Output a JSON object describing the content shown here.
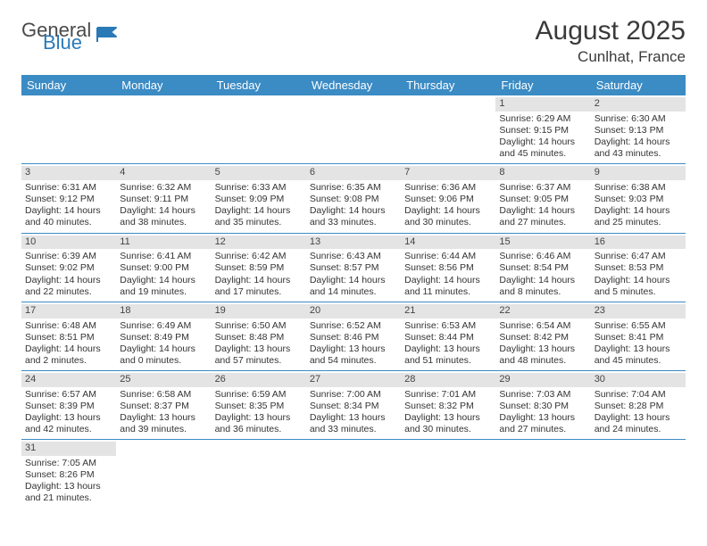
{
  "logo": {
    "part1": "General",
    "part2": "Blue"
  },
  "title": "August 2025",
  "location": "Cunlhat, France",
  "colors": {
    "header_bg": "#3b8bc4",
    "header_text": "#ffffff",
    "daynum_bg": "#e4e4e4",
    "row_border": "#3b8bc4",
    "logo_gray": "#4a4a4a",
    "logo_blue": "#2a7ab8"
  },
  "day_headers": [
    "Sunday",
    "Monday",
    "Tuesday",
    "Wednesday",
    "Thursday",
    "Friday",
    "Saturday"
  ],
  "weeks": [
    [
      null,
      null,
      null,
      null,
      null,
      {
        "n": "1",
        "sr": "Sunrise: 6:29 AM",
        "ss": "Sunset: 9:15 PM",
        "d1": "Daylight: 14 hours",
        "d2": "and 45 minutes."
      },
      {
        "n": "2",
        "sr": "Sunrise: 6:30 AM",
        "ss": "Sunset: 9:13 PM",
        "d1": "Daylight: 14 hours",
        "d2": "and 43 minutes."
      }
    ],
    [
      {
        "n": "3",
        "sr": "Sunrise: 6:31 AM",
        "ss": "Sunset: 9:12 PM",
        "d1": "Daylight: 14 hours",
        "d2": "and 40 minutes."
      },
      {
        "n": "4",
        "sr": "Sunrise: 6:32 AM",
        "ss": "Sunset: 9:11 PM",
        "d1": "Daylight: 14 hours",
        "d2": "and 38 minutes."
      },
      {
        "n": "5",
        "sr": "Sunrise: 6:33 AM",
        "ss": "Sunset: 9:09 PM",
        "d1": "Daylight: 14 hours",
        "d2": "and 35 minutes."
      },
      {
        "n": "6",
        "sr": "Sunrise: 6:35 AM",
        "ss": "Sunset: 9:08 PM",
        "d1": "Daylight: 14 hours",
        "d2": "and 33 minutes."
      },
      {
        "n": "7",
        "sr": "Sunrise: 6:36 AM",
        "ss": "Sunset: 9:06 PM",
        "d1": "Daylight: 14 hours",
        "d2": "and 30 minutes."
      },
      {
        "n": "8",
        "sr": "Sunrise: 6:37 AM",
        "ss": "Sunset: 9:05 PM",
        "d1": "Daylight: 14 hours",
        "d2": "and 27 minutes."
      },
      {
        "n": "9",
        "sr": "Sunrise: 6:38 AM",
        "ss": "Sunset: 9:03 PM",
        "d1": "Daylight: 14 hours",
        "d2": "and 25 minutes."
      }
    ],
    [
      {
        "n": "10",
        "sr": "Sunrise: 6:39 AM",
        "ss": "Sunset: 9:02 PM",
        "d1": "Daylight: 14 hours",
        "d2": "and 22 minutes."
      },
      {
        "n": "11",
        "sr": "Sunrise: 6:41 AM",
        "ss": "Sunset: 9:00 PM",
        "d1": "Daylight: 14 hours",
        "d2": "and 19 minutes."
      },
      {
        "n": "12",
        "sr": "Sunrise: 6:42 AM",
        "ss": "Sunset: 8:59 PM",
        "d1": "Daylight: 14 hours",
        "d2": "and 17 minutes."
      },
      {
        "n": "13",
        "sr": "Sunrise: 6:43 AM",
        "ss": "Sunset: 8:57 PM",
        "d1": "Daylight: 14 hours",
        "d2": "and 14 minutes."
      },
      {
        "n": "14",
        "sr": "Sunrise: 6:44 AM",
        "ss": "Sunset: 8:56 PM",
        "d1": "Daylight: 14 hours",
        "d2": "and 11 minutes."
      },
      {
        "n": "15",
        "sr": "Sunrise: 6:46 AM",
        "ss": "Sunset: 8:54 PM",
        "d1": "Daylight: 14 hours",
        "d2": "and 8 minutes."
      },
      {
        "n": "16",
        "sr": "Sunrise: 6:47 AM",
        "ss": "Sunset: 8:53 PM",
        "d1": "Daylight: 14 hours",
        "d2": "and 5 minutes."
      }
    ],
    [
      {
        "n": "17",
        "sr": "Sunrise: 6:48 AM",
        "ss": "Sunset: 8:51 PM",
        "d1": "Daylight: 14 hours",
        "d2": "and 2 minutes."
      },
      {
        "n": "18",
        "sr": "Sunrise: 6:49 AM",
        "ss": "Sunset: 8:49 PM",
        "d1": "Daylight: 14 hours",
        "d2": "and 0 minutes."
      },
      {
        "n": "19",
        "sr": "Sunrise: 6:50 AM",
        "ss": "Sunset: 8:48 PM",
        "d1": "Daylight: 13 hours",
        "d2": "and 57 minutes."
      },
      {
        "n": "20",
        "sr": "Sunrise: 6:52 AM",
        "ss": "Sunset: 8:46 PM",
        "d1": "Daylight: 13 hours",
        "d2": "and 54 minutes."
      },
      {
        "n": "21",
        "sr": "Sunrise: 6:53 AM",
        "ss": "Sunset: 8:44 PM",
        "d1": "Daylight: 13 hours",
        "d2": "and 51 minutes."
      },
      {
        "n": "22",
        "sr": "Sunrise: 6:54 AM",
        "ss": "Sunset: 8:42 PM",
        "d1": "Daylight: 13 hours",
        "d2": "and 48 minutes."
      },
      {
        "n": "23",
        "sr": "Sunrise: 6:55 AM",
        "ss": "Sunset: 8:41 PM",
        "d1": "Daylight: 13 hours",
        "d2": "and 45 minutes."
      }
    ],
    [
      {
        "n": "24",
        "sr": "Sunrise: 6:57 AM",
        "ss": "Sunset: 8:39 PM",
        "d1": "Daylight: 13 hours",
        "d2": "and 42 minutes."
      },
      {
        "n": "25",
        "sr": "Sunrise: 6:58 AM",
        "ss": "Sunset: 8:37 PM",
        "d1": "Daylight: 13 hours",
        "d2": "and 39 minutes."
      },
      {
        "n": "26",
        "sr": "Sunrise: 6:59 AM",
        "ss": "Sunset: 8:35 PM",
        "d1": "Daylight: 13 hours",
        "d2": "and 36 minutes."
      },
      {
        "n": "27",
        "sr": "Sunrise: 7:00 AM",
        "ss": "Sunset: 8:34 PM",
        "d1": "Daylight: 13 hours",
        "d2": "and 33 minutes."
      },
      {
        "n": "28",
        "sr": "Sunrise: 7:01 AM",
        "ss": "Sunset: 8:32 PM",
        "d1": "Daylight: 13 hours",
        "d2": "and 30 minutes."
      },
      {
        "n": "29",
        "sr": "Sunrise: 7:03 AM",
        "ss": "Sunset: 8:30 PM",
        "d1": "Daylight: 13 hours",
        "d2": "and 27 minutes."
      },
      {
        "n": "30",
        "sr": "Sunrise: 7:04 AM",
        "ss": "Sunset: 8:28 PM",
        "d1": "Daylight: 13 hours",
        "d2": "and 24 minutes."
      }
    ],
    [
      {
        "n": "31",
        "sr": "Sunrise: 7:05 AM",
        "ss": "Sunset: 8:26 PM",
        "d1": "Daylight: 13 hours",
        "d2": "and 21 minutes."
      },
      null,
      null,
      null,
      null,
      null,
      null
    ]
  ]
}
